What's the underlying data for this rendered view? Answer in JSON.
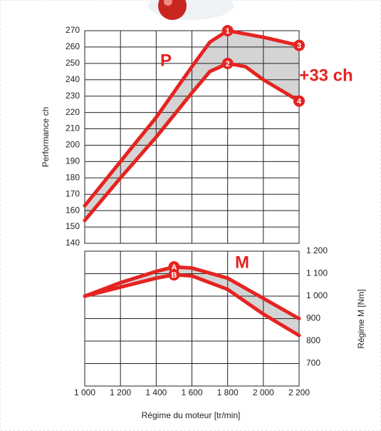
{
  "chart_data": [
    {
      "type": "line",
      "ylabel": "Performance ch",
      "annotation_text": "P",
      "delta_label": "+33 ch",
      "x": [
        1000,
        1200,
        1400,
        1600,
        1700,
        1800,
        1900,
        2000,
        2200
      ],
      "series": [
        {
          "color": "#e52421",
          "values": [
            163,
            190,
            217,
            248,
            263,
            270,
            268,
            266,
            261
          ]
        },
        {
          "color": "#e52421",
          "values": [
            154,
            180,
            205,
            232,
            245,
            250,
            248,
            240,
            227
          ]
        }
      ],
      "band_color": "#d4d4d4",
      "annotations": [
        {
          "text": "1",
          "x": 1800,
          "y": 270
        },
        {
          "text": "2",
          "x": 1800,
          "y": 250
        },
        {
          "text": "3",
          "x": 2200,
          "y": 261
        },
        {
          "text": "4",
          "x": 2200,
          "y": 227
        }
      ],
      "xlim": [
        1000,
        2200
      ],
      "xgrid": [
        1000,
        1200,
        1400,
        1600,
        1800,
        2000,
        2200
      ],
      "ylim": [
        140,
        270
      ],
      "yticks": [
        140,
        150,
        160,
        170,
        180,
        190,
        200,
        210,
        220,
        230,
        240,
        250,
        260,
        270
      ],
      "grid": true
    },
    {
      "type": "line",
      "ylabel": "Régime M [Nm]",
      "xlabel": "Régime du moteur [tr/min]",
      "annotation_text": "M",
      "x": [
        1000,
        1200,
        1400,
        1500,
        1600,
        1800,
        2000,
        2200
      ],
      "series": [
        {
          "color": "#e52421",
          "values": [
            1000,
            1060,
            1110,
            1130,
            1125,
            1080,
            990,
            900
          ]
        },
        {
          "color": "#e52421",
          "values": [
            1000,
            1040,
            1080,
            1095,
            1090,
            1030,
            920,
            825
          ]
        }
      ],
      "band_color": "#d4d4d4",
      "annotations": [
        {
          "text": "A",
          "x": 1500,
          "y": 1130
        },
        {
          "text": "B",
          "x": 1500,
          "y": 1095
        }
      ],
      "xlim": [
        1000,
        2200
      ],
      "xticks": [
        {
          "value": 1000,
          "label": "1 000"
        },
        {
          "value": 1200,
          "label": "1 200"
        },
        {
          "value": 1400,
          "label": "1 400"
        },
        {
          "value": 1600,
          "label": "1 600"
        },
        {
          "value": 1800,
          "label": "1 800"
        },
        {
          "value": 2000,
          "label": "2 000"
        },
        {
          "value": 2200,
          "label": "2 200"
        }
      ],
      "ylim": [
        600,
        1200
      ],
      "yticks": [
        700,
        800,
        900,
        {
          "value": 1000,
          "label": "1 000"
        },
        {
          "value": 1100,
          "label": "1 100"
        },
        {
          "value": 1200,
          "label": "1 200"
        }
      ],
      "grid": true
    }
  ]
}
